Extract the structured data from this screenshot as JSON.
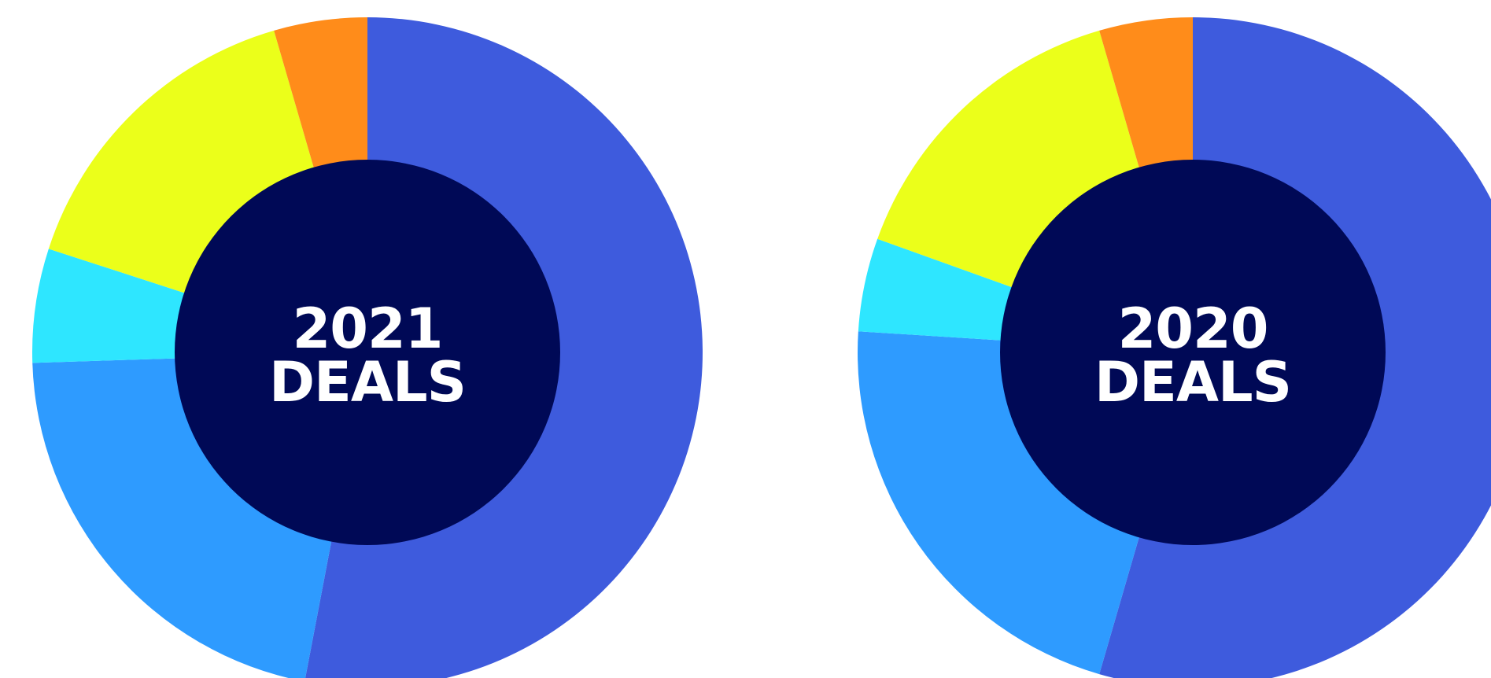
{
  "chart_data": [
    {
      "type": "pie",
      "subtype": "donut",
      "center_label": {
        "line1": "2021",
        "line2": "DEALS"
      },
      "slices": [
        {
          "value": 53.0,
          "color": "#3e5bdd"
        },
        {
          "value": 21.5,
          "color": "#2e9bff"
        },
        {
          "value": 5.5,
          "color": "#2ee6ff"
        },
        {
          "value": 15.5,
          "color": "#ebff1a"
        },
        {
          "value": 4.5,
          "color": "#ff8c1a"
        }
      ],
      "hole_color": "#000956"
    },
    {
      "type": "pie",
      "subtype": "donut",
      "center_label": {
        "line1": "2020",
        "line2": "DEALS"
      },
      "slices": [
        {
          "value": 54.5,
          "color": "#3e5bdd"
        },
        {
          "value": 21.5,
          "color": "#2e9bff"
        },
        {
          "value": 4.5,
          "color": "#2ee6ff"
        },
        {
          "value": 15.0,
          "color": "#ebff1a"
        },
        {
          "value": 4.5,
          "color": "#ff8c1a"
        }
      ],
      "hole_color": "#000956"
    }
  ]
}
